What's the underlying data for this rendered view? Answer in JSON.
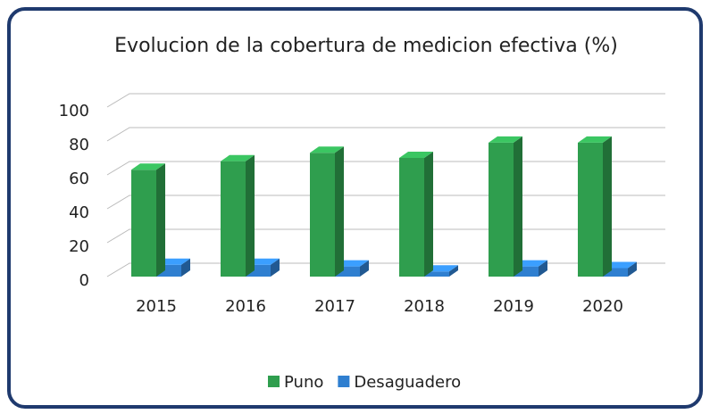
{
  "chart_data": {
    "type": "bar3d",
    "title": "Evolucion de la cobertura de medicion efectiva (%)",
    "categories": [
      "2015",
      "2016",
      "2017",
      "2018",
      "2019",
      "2020"
    ],
    "series": [
      {
        "name": "Puno",
        "color": "#2f9e4e",
        "values": [
          63,
          68,
          73,
          70,
          79,
          79
        ]
      },
      {
        "name": "Desaguadero",
        "color": "#2f7fd0",
        "values": [
          7,
          7,
          6,
          3,
          6,
          5
        ]
      }
    ],
    "ylim": [
      0,
      100
    ],
    "yticks": [
      0,
      20,
      40,
      60,
      80,
      100
    ],
    "grid": true,
    "legend": "bottom"
  }
}
